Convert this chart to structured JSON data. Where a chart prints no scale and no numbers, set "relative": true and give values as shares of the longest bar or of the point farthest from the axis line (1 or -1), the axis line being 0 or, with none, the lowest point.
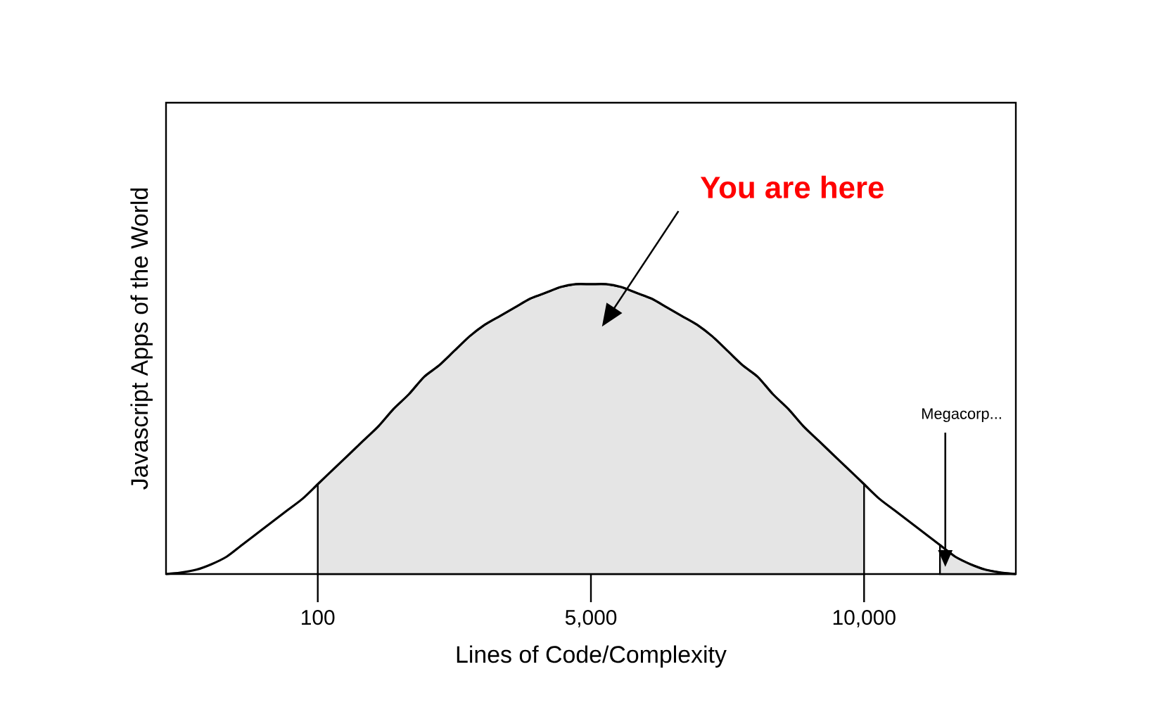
{
  "chart_data": {
    "type": "line",
    "relative": true,
    "xlabel": "Lines of Code/Complexity",
    "ylabel": "Javascript Apps of the World",
    "categories": [
      null,
      null,
      null,
      null,
      null,
      null,
      null,
      null,
      null,
      null,
      "100",
      null,
      null,
      null,
      null,
      null,
      null,
      null,
      null,
      null,
      null,
      null,
      null,
      null,
      null,
      null,
      null,
      null,
      "5,000",
      null,
      null,
      null,
      null,
      null,
      null,
      null,
      null,
      null,
      null,
      null,
      null,
      null,
      null,
      null,
      null,
      null,
      "10,000",
      null,
      null,
      null,
      null,
      null,
      null,
      null,
      null,
      null,
      null
    ],
    "series": [
      {
        "type": "area",
        "color": "#e5e5e5",
        "values": [
          null,
          null,
          null,
          null,
          null,
          null,
          null,
          null,
          null,
          null,
          0.31,
          0.36,
          0.41,
          0.46,
          0.51,
          0.57,
          0.62,
          0.68,
          0.72,
          0.77,
          0.82,
          0.86,
          0.89,
          0.92,
          0.95,
          0.97,
          0.99,
          1.0,
          1.0,
          1.0,
          0.99,
          0.97,
          0.95,
          0.92,
          0.89,
          0.86,
          0.82,
          0.77,
          0.72,
          0.68,
          0.62,
          0.57,
          0.51,
          0.46,
          0.41,
          0.36,
          0.31,
          null,
          null,
          null,
          null,
          null,
          null,
          null,
          null,
          null,
          null
        ]
      },
      {
        "type": "area",
        "color": "#e5e5e5",
        "values": [
          null,
          null,
          null,
          null,
          null,
          null,
          null,
          null,
          null,
          null,
          null,
          null,
          null,
          null,
          null,
          null,
          null,
          null,
          null,
          null,
          null,
          null,
          null,
          null,
          null,
          null,
          null,
          null,
          null,
          null,
          null,
          null,
          null,
          null,
          null,
          null,
          null,
          null,
          null,
          null,
          null,
          null,
          null,
          null,
          null,
          null,
          null,
          null,
          null,
          null,
          null,
          0.1,
          0.06,
          0.034,
          0.015,
          0.005,
          0.0
        ]
      },
      {
        "color": "#000000",
        "values": [
          0.0,
          0.005,
          0.015,
          0.034,
          0.06,
          0.1,
          0.14,
          0.18,
          0.22,
          0.26,
          0.31,
          0.36,
          0.41,
          0.46,
          0.51,
          0.57,
          0.62,
          0.68,
          0.72,
          0.77,
          0.82,
          0.86,
          0.89,
          0.92,
          0.95,
          0.97,
          0.99,
          1.0,
          1.0,
          1.0,
          0.99,
          0.97,
          0.95,
          0.92,
          0.89,
          0.86,
          0.82,
          0.77,
          0.72,
          0.68,
          0.62,
          0.57,
          0.51,
          0.46,
          0.41,
          0.36,
          0.31,
          0.26,
          0.22,
          0.18,
          0.14,
          0.1,
          0.06,
          0.034,
          0.015,
          0.005,
          0.0
        ]
      }
    ],
    "annotations": [
      "You are here",
      "Megacorp..."
    ]
  }
}
